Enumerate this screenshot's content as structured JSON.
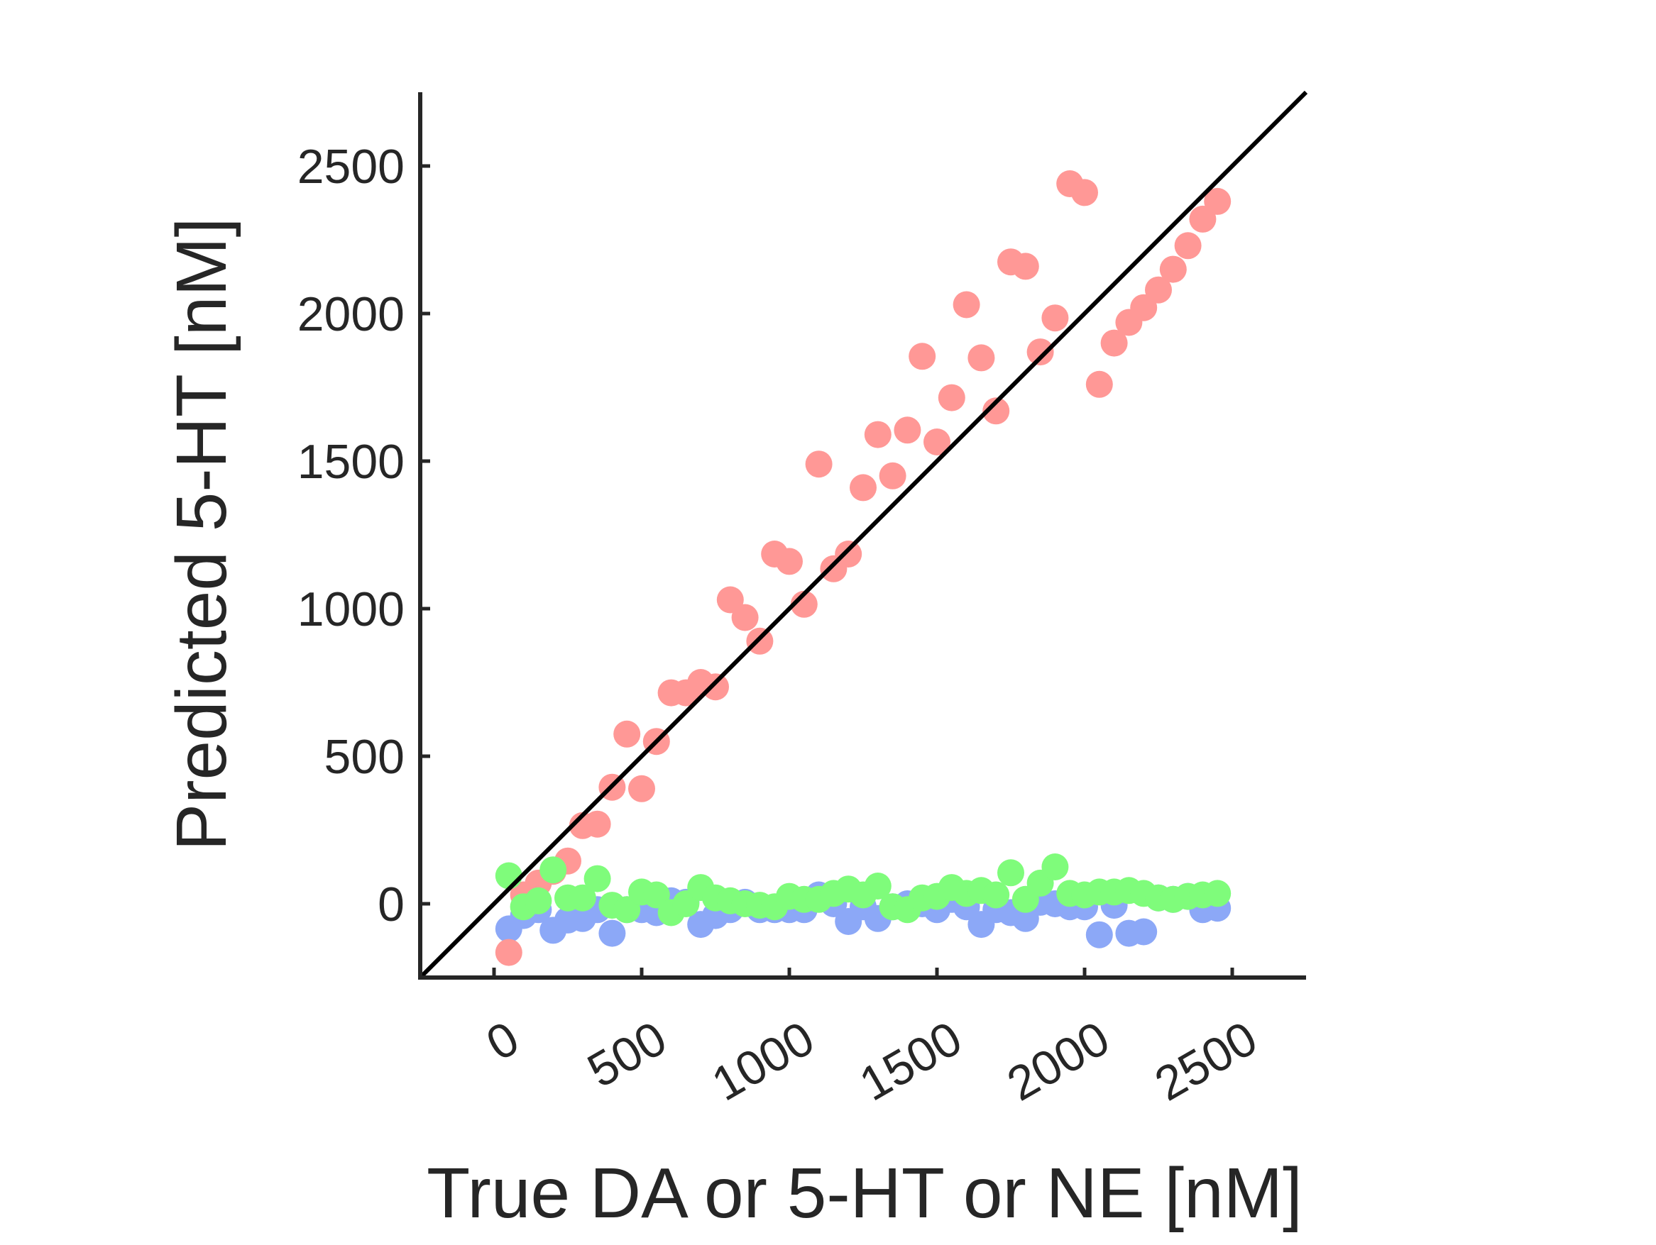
{
  "chart_data": {
    "type": "scatter",
    "title": "",
    "xlabel": "True DA or 5-HT or NE [nM]",
    "ylabel": "Predicted 5-HT [nM]",
    "xlim": [
      -250,
      2750
    ],
    "ylim": [
      -250,
      2750
    ],
    "xticks": [
      0,
      500,
      1000,
      1500,
      2000,
      2500
    ],
    "yticks": [
      0,
      500,
      1000,
      1500,
      2000,
      2500
    ],
    "xtick_labels": [
      "0",
      "500",
      "1000",
      "1500",
      "2000",
      "2500"
    ],
    "ytick_labels": [
      "0",
      "500",
      "1000",
      "1500",
      "2000",
      "2500"
    ],
    "xtick_rotation_deg": -30,
    "grid": false,
    "legend": "none",
    "identity_line": {
      "from": [
        -250,
        -250
      ],
      "to": [
        2750,
        2750
      ],
      "color": "#000000"
    },
    "series": [
      {
        "color": "#8ca8f7",
        "x": [
          50,
          100,
          150,
          200,
          250,
          300,
          350,
          400,
          450,
          500,
          550,
          600,
          650,
          700,
          750,
          800,
          850,
          900,
          950,
          1000,
          1050,
          1100,
          1150,
          1200,
          1250,
          1300,
          1350,
          1400,
          1450,
          1500,
          1550,
          1600,
          1650,
          1700,
          1750,
          1800,
          1850,
          1900,
          1950,
          2000,
          2050,
          2100,
          2150,
          2200,
          2250,
          2300,
          2350,
          2400,
          2450
        ],
        "y": [
          -85,
          -40,
          -20,
          -90,
          -55,
          -50,
          -20,
          -100,
          -20,
          -20,
          -30,
          10,
          5,
          -70,
          -40,
          -20,
          5,
          -20,
          -20,
          -20,
          -20,
          30,
          0,
          -60,
          -10,
          -50,
          -10,
          0,
          0,
          -20,
          15,
          -10,
          -70,
          -20,
          -30,
          -50,
          5,
          0,
          -10,
          -10,
          -105,
          -5,
          -100,
          -95,
          20,
          15,
          25,
          -20,
          -15
        ]
      },
      {
        "color": "#ff9896",
        "x": [
          50,
          100,
          150,
          200,
          250,
          300,
          350,
          400,
          450,
          500,
          550,
          600,
          650,
          700,
          750,
          800,
          850,
          900,
          950,
          1000,
          1050,
          1100,
          1150,
          1200,
          1250,
          1300,
          1350,
          1400,
          1450,
          1500,
          1550,
          1600,
          1650,
          1700,
          1750,
          1800,
          1850,
          1900,
          1950,
          2000,
          2050,
          2100,
          2150,
          2200,
          2250,
          2300,
          2350,
          2400,
          2450
        ],
        "y": [
          -165,
          30,
          70,
          110,
          145,
          265,
          270,
          395,
          575,
          390,
          550,
          715,
          715,
          750,
          735,
          1030,
          970,
          890,
          1185,
          1160,
          1015,
          1490,
          1135,
          1185,
          1410,
          1590,
          1450,
          1605,
          1855,
          1565,
          1715,
          2030,
          1850,
          1670,
          2175,
          2160,
          1870,
          1985,
          2440,
          2410,
          1760,
          1900,
          1970,
          2020,
          2080,
          2150,
          2230,
          2320,
          2380
        ]
      },
      {
        "color": "#7ffc7b",
        "x": [
          50,
          100,
          150,
          200,
          250,
          300,
          350,
          400,
          450,
          500,
          550,
          600,
          650,
          700,
          750,
          800,
          850,
          900,
          950,
          1000,
          1050,
          1100,
          1150,
          1200,
          1250,
          1300,
          1350,
          1400,
          1450,
          1500,
          1550,
          1600,
          1650,
          1700,
          1750,
          1800,
          1850,
          1900,
          1950,
          2000,
          2050,
          2100,
          2150,
          2200,
          2250,
          2300,
          2350,
          2400,
          2450
        ],
        "y": [
          95,
          -10,
          10,
          115,
          20,
          20,
          85,
          -5,
          -20,
          40,
          30,
          -30,
          0,
          55,
          20,
          10,
          0,
          -5,
          -10,
          25,
          15,
          15,
          35,
          50,
          30,
          60,
          -10,
          -20,
          20,
          25,
          55,
          35,
          45,
          30,
          105,
          15,
          70,
          125,
          35,
          30,
          40,
          40,
          45,
          35,
          20,
          15,
          25,
          30,
          35
        ]
      }
    ]
  }
}
